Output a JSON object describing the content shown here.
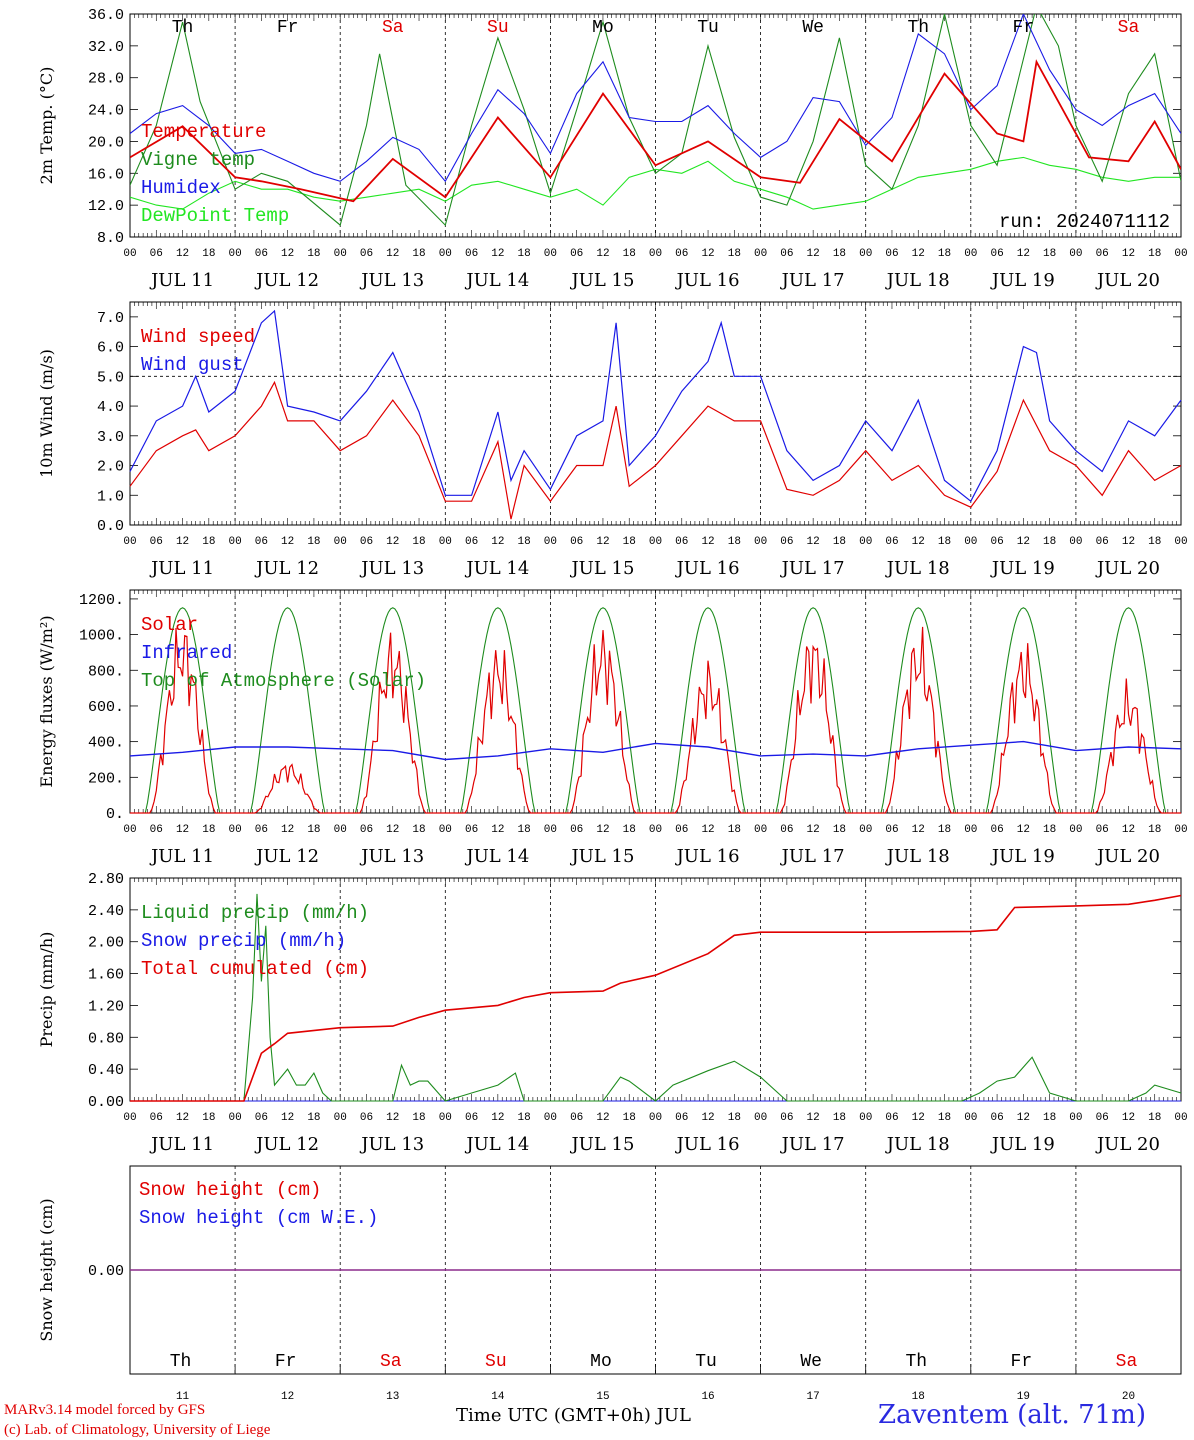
{
  "run_label": "run: 2024071112",
  "footer": {
    "model_line1": "MARv3.14 model forced by GFS",
    "model_line2": "(c) Lab. of Climatology, University of Liege",
    "time_axis": "Time UTC (GMT+0h) JUL",
    "station": "Zaventem (alt. 71m)"
  },
  "days": [
    {
      "name": "Th",
      "date": "JUL 11",
      "num": "11",
      "weekend": false
    },
    {
      "name": "Fr",
      "date": "JUL 12",
      "num": "12",
      "weekend": false
    },
    {
      "name": "Sa",
      "date": "JUL 13",
      "num": "13",
      "weekend": true
    },
    {
      "name": "Su",
      "date": "JUL 14",
      "num": "14",
      "weekend": true
    },
    {
      "name": "Mo",
      "date": "JUL 15",
      "num": "15",
      "weekend": false
    },
    {
      "name": "Tu",
      "date": "JUL 16",
      "num": "16",
      "weekend": false
    },
    {
      "name": "We",
      "date": "JUL 17",
      "num": "17",
      "weekend": false
    },
    {
      "name": "Th",
      "date": "JUL 18",
      "num": "18",
      "weekend": false
    },
    {
      "name": "Fr",
      "date": "JUL 19",
      "num": "19",
      "weekend": false
    },
    {
      "name": "Sa",
      "date": "JUL 20",
      "num": "20",
      "weekend": true
    }
  ],
  "hour_labels": [
    "00",
    "06",
    "12",
    "18"
  ],
  "colors": {
    "red": "#e00000",
    "blue": "#1a1ae6",
    "green": "#1e8c1e",
    "lightgreen": "#22e622",
    "purple": "#8b2b8b"
  },
  "chart_data": [
    {
      "type": "line",
      "ylabel": "2m Temp. (°C)",
      "ylim": [
        8,
        36
      ],
      "yticks": [
        "8.0",
        "12.0",
        "16.0",
        "20.0",
        "24.0",
        "28.0",
        "32.0",
        "36.0"
      ],
      "ytick_values": [
        8,
        12,
        16,
        20,
        24,
        28,
        32,
        36
      ],
      "x_unit": "hours since JUL 11 00 UTC",
      "series": [
        {
          "name": "Temperature",
          "color": "red",
          "x": [
            0,
            12,
            24,
            30,
            39,
            51,
            60,
            72,
            84,
            96,
            108,
            120,
            132,
            144,
            153,
            162,
            174,
            186,
            198,
            204,
            207,
            219,
            228,
            234,
            240
          ],
          "y": [
            18.0,
            21.9,
            15.5,
            15.0,
            14.0,
            12.5,
            17.8,
            13.0,
            23.0,
            15.5,
            26.0,
            17.0,
            20.0,
            15.5,
            14.8,
            22.8,
            17.5,
            28.5,
            21.0,
            20.0,
            30.0,
            18.0,
            17.5,
            22.5,
            16.5
          ]
        },
        {
          "name": "Vigne temp",
          "color": "green",
          "x": [
            0,
            6,
            12,
            16,
            24,
            30,
            36,
            48,
            54,
            57,
            63,
            72,
            78,
            84,
            90,
            96,
            102,
            108,
            114,
            120,
            126,
            132,
            138,
            144,
            150,
            156,
            162,
            168,
            174,
            180,
            186,
            192,
            198,
            207,
            212,
            216,
            222,
            228,
            234,
            240
          ],
          "y": [
            14.5,
            22.0,
            35.0,
            25.0,
            14.0,
            16.0,
            15.0,
            9.5,
            22.0,
            31.0,
            14.5,
            9.5,
            22.0,
            33.0,
            24.0,
            13.5,
            24.0,
            35.0,
            23.0,
            16.0,
            18.5,
            32.0,
            20.5,
            13.0,
            12.0,
            20.0,
            33.0,
            17.0,
            14.0,
            22.0,
            36.0,
            22.0,
            17.0,
            37.0,
            32.0,
            22.0,
            15.0,
            26.0,
            31.0,
            15.0
          ]
        },
        {
          "name": "Humidex",
          "color": "blue",
          "x": [
            0,
            6,
            12,
            18,
            24,
            30,
            36,
            42,
            48,
            54,
            60,
            66,
            72,
            78,
            84,
            90,
            96,
            102,
            108,
            114,
            120,
            126,
            132,
            138,
            144,
            150,
            156,
            162,
            168,
            174,
            180,
            186,
            192,
            198,
            204,
            210,
            216,
            222,
            228,
            234,
            240
          ],
          "y": [
            21.0,
            23.5,
            24.5,
            22.0,
            18.5,
            19.0,
            17.5,
            16.0,
            15.0,
            17.5,
            20.5,
            19.0,
            15.0,
            21.0,
            26.5,
            23.5,
            18.5,
            26.0,
            30.0,
            23.0,
            22.5,
            22.5,
            24.5,
            21.0,
            18.0,
            20.0,
            25.5,
            25.0,
            19.5,
            23.0,
            33.5,
            31.0,
            24.0,
            27.0,
            36.0,
            29.0,
            24.0,
            22.0,
            24.5,
            26.0,
            21.0
          ]
        },
        {
          "name": "DewPoint Temp",
          "color": "lightgreen",
          "x": [
            0,
            6,
            12,
            18,
            24,
            30,
            36,
            42,
            48,
            54,
            60,
            66,
            72,
            78,
            84,
            90,
            96,
            102,
            108,
            114,
            120,
            126,
            132,
            138,
            144,
            150,
            156,
            162,
            168,
            174,
            180,
            186,
            192,
            198,
            204,
            210,
            216,
            222,
            228,
            234,
            240
          ],
          "y": [
            13.0,
            12.0,
            11.5,
            13.5,
            15.0,
            14.0,
            14.0,
            13.0,
            12.5,
            13.0,
            13.5,
            14.0,
            12.5,
            14.5,
            15.0,
            14.0,
            13.0,
            14.0,
            12.0,
            15.5,
            16.5,
            16.0,
            17.5,
            15.0,
            14.0,
            13.0,
            11.5,
            12.0,
            12.5,
            14.0,
            15.5,
            16.0,
            16.5,
            17.5,
            18.0,
            17.0,
            16.5,
            15.5,
            15.0,
            15.5,
            15.5
          ]
        }
      ],
      "legend": [
        {
          "text": "Temperature",
          "color": "red"
        },
        {
          "text": "Vigne temp",
          "color": "green"
        },
        {
          "text": "Humidex",
          "color": "blue"
        },
        {
          "text": "DewPoint Temp",
          "color": "lightgreen"
        }
      ]
    },
    {
      "type": "line",
      "ylabel": "10m Wind (m/s)",
      "ylim": [
        0,
        7.5
      ],
      "yticks": [
        "0.0",
        "1.0",
        "2.0",
        "3.0",
        "4.0",
        "5.0",
        "6.0",
        "7.0"
      ],
      "ytick_values": [
        0,
        1,
        2,
        3,
        4,
        5,
        6,
        7
      ],
      "reference_line": 5.0,
      "series": [
        {
          "name": "Wind speed",
          "color": "red",
          "x": [
            0,
            6,
            12,
            15,
            18,
            24,
            30,
            33,
            36,
            42,
            48,
            54,
            60,
            66,
            72,
            78,
            84,
            87,
            90,
            96,
            102,
            108,
            111,
            114,
            120,
            126,
            132,
            138,
            144,
            150,
            156,
            162,
            168,
            174,
            180,
            186,
            192,
            198,
            204,
            210,
            216,
            222,
            228,
            234,
            240
          ],
          "y": [
            1.3,
            2.5,
            3.0,
            3.2,
            2.5,
            3.0,
            4.0,
            4.8,
            3.5,
            3.5,
            2.5,
            3.0,
            4.2,
            3.0,
            0.8,
            0.8,
            2.8,
            0.2,
            2.0,
            0.8,
            2.0,
            2.0,
            4.0,
            1.3,
            2.0,
            3.0,
            4.0,
            3.5,
            3.5,
            1.2,
            1.0,
            1.5,
            2.5,
            1.5,
            2.0,
            1.0,
            0.6,
            1.8,
            4.2,
            2.5,
            2.0,
            1.0,
            2.5,
            1.5,
            2.0
          ]
        },
        {
          "name": "Wind gust",
          "color": "blue",
          "x": [
            0,
            6,
            12,
            15,
            18,
            24,
            30,
            33,
            36,
            42,
            48,
            54,
            60,
            66,
            72,
            78,
            84,
            87,
            90,
            96,
            102,
            108,
            111,
            114,
            120,
            126,
            132,
            135,
            138,
            144,
            150,
            156,
            162,
            168,
            174,
            180,
            186,
            192,
            198,
            204,
            207,
            210,
            216,
            222,
            228,
            234,
            240
          ],
          "y": [
            1.8,
            3.5,
            4.0,
            5.0,
            3.8,
            4.5,
            6.8,
            7.2,
            4.0,
            3.8,
            3.5,
            4.5,
            5.8,
            3.8,
            1.0,
            1.0,
            3.8,
            1.5,
            2.5,
            1.2,
            3.0,
            3.5,
            6.8,
            2.0,
            3.0,
            4.5,
            5.5,
            6.8,
            5.0,
            5.0,
            2.5,
            1.5,
            2.0,
            3.5,
            2.5,
            4.2,
            1.5,
            0.8,
            2.5,
            6.0,
            5.8,
            3.5,
            2.5,
            1.8,
            3.5,
            3.0,
            4.2
          ]
        }
      ],
      "legend": [
        {
          "text": "Wind speed",
          "color": "red"
        },
        {
          "text": "Wind gust",
          "color": "blue"
        }
      ]
    },
    {
      "type": "line",
      "ylabel": "Energy fluxes (W/m²)",
      "ylim": [
        0,
        1250
      ],
      "yticks": [
        "0.",
        "200.",
        "400.",
        "600.",
        "800.",
        "1000.",
        "1200."
      ],
      "ytick_values": [
        0,
        200,
        400,
        600,
        800,
        1000,
        1200
      ],
      "solar_peaks": [
        880,
        240,
        830,
        780,
        860,
        700,
        860,
        840,
        790,
        590
      ],
      "toa_peak": 1150,
      "infrared": {
        "x": [
          0,
          12,
          24,
          36,
          48,
          60,
          72,
          84,
          96,
          108,
          120,
          132,
          144,
          156,
          168,
          180,
          192,
          204,
          216,
          228,
          240
        ],
        "y": [
          320,
          340,
          370,
          370,
          360,
          350,
          300,
          320,
          360,
          340,
          390,
          370,
          320,
          330,
          320,
          360,
          380,
          400,
          350,
          370,
          360
        ]
      },
      "legend": [
        {
          "text": "Solar",
          "color": "red"
        },
        {
          "text": "Infrared",
          "color": "blue"
        },
        {
          "text": "Top of Atmosphere (Solar)",
          "color": "green"
        }
      ]
    },
    {
      "type": "line",
      "ylabel": "Precip (mm/h)",
      "ylim": [
        0,
        2.8
      ],
      "yticks": [
        "0.00",
        "0.40",
        "0.80",
        "1.20",
        "1.60",
        "2.00",
        "2.40",
        "2.80"
      ],
      "ytick_values": [
        0,
        0.4,
        0.8,
        1.2,
        1.6,
        2.0,
        2.4,
        2.8
      ],
      "series": [
        {
          "name": "Total cumulated (cm)",
          "color": "red",
          "x": [
            0,
            26,
            30,
            33,
            36,
            48,
            60,
            66,
            72,
            84,
            90,
            96,
            108,
            112,
            120,
            132,
            138,
            144,
            168,
            192,
            198,
            202,
            216,
            228,
            234,
            240
          ],
          "y": [
            0,
            0,
            0.6,
            0.72,
            0.85,
            0.92,
            0.94,
            1.05,
            1.14,
            1.2,
            1.3,
            1.36,
            1.38,
            1.48,
            1.58,
            1.85,
            2.08,
            2.12,
            2.12,
            2.13,
            2.15,
            2.43,
            2.45,
            2.47,
            2.52,
            2.58
          ]
        },
        {
          "name": "Liquid precip (mm/h)",
          "color": "green",
          "x": [
            0,
            26,
            28,
            29,
            30,
            31,
            32,
            33,
            36,
            38,
            40,
            42,
            44,
            46,
            48,
            60,
            62,
            64,
            66,
            68,
            72,
            78,
            84,
            88,
            90,
            96,
            108,
            112,
            114,
            120,
            124,
            132,
            138,
            144,
            150,
            190,
            194,
            198,
            202,
            206,
            210,
            216,
            228,
            232,
            234,
            240
          ],
          "y": [
            0,
            0,
            1.3,
            2.6,
            1.5,
            2.2,
            0.8,
            0.2,
            0.4,
            0.2,
            0.2,
            0.35,
            0.1,
            0,
            0,
            0,
            0.45,
            0.2,
            0.25,
            0.25,
            0,
            0.1,
            0.2,
            0.35,
            0,
            0,
            0,
            0.3,
            0.25,
            0,
            0.2,
            0.38,
            0.5,
            0.3,
            0,
            0,
            0.1,
            0.25,
            0.3,
            0.55,
            0.1,
            0,
            0,
            0.1,
            0.2,
            0.1
          ]
        },
        {
          "name": "Snow precip (mm/h)",
          "color": "blue",
          "x": [
            0,
            240
          ],
          "y": [
            0,
            0
          ]
        }
      ],
      "legend": [
        {
          "text": "Liquid precip (mm/h)",
          "color": "green"
        },
        {
          "text": "Snow precip (mm/h)",
          "color": "blue"
        },
        {
          "text": "Total cumulated (cm)",
          "color": "red"
        }
      ]
    },
    {
      "type": "line",
      "ylabel": "Snow height (cm)",
      "ylim": [
        -1,
        1
      ],
      "yticks": [
        "0.00"
      ],
      "ytick_values": [
        0
      ],
      "series": [
        {
          "name": "Snow height (cm)",
          "color": "red",
          "x": [
            0,
            240
          ],
          "y": [
            0,
            0
          ]
        },
        {
          "name": "Snow height (cm W.E.)",
          "color": "blue",
          "x": [
            0,
            240
          ],
          "y": [
            0,
            0
          ]
        }
      ],
      "legend": [
        {
          "text": "Snow height (cm)",
          "color": "red"
        },
        {
          "text": "Snow height (cm W.E.)",
          "color": "blue"
        }
      ]
    }
  ]
}
